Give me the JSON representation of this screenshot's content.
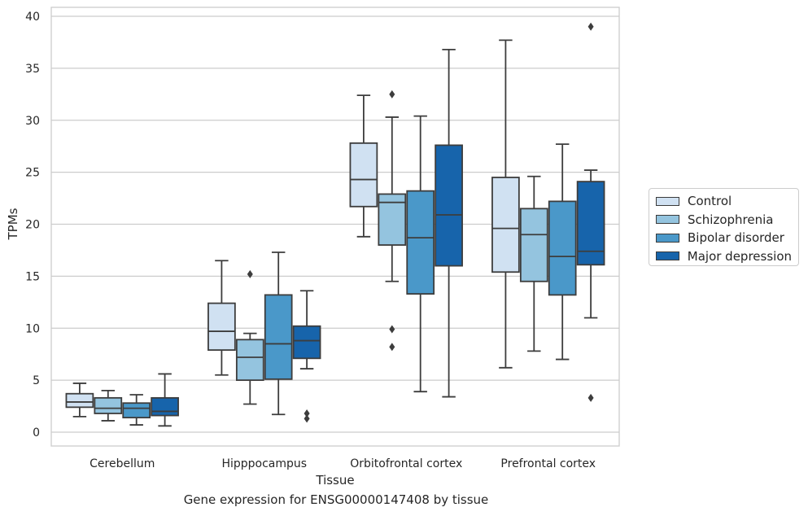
{
  "caption": "Gene expression for ENSG00000147408 by tissue",
  "chart_data": {
    "type": "box",
    "xlabel": "Tissue",
    "ylabel": "TPMs",
    "ylim": [
      -1.3,
      41
    ],
    "yticks": [
      0,
      5,
      10,
      15,
      20,
      25,
      30,
      35,
      40
    ],
    "grid": true,
    "legend_position": "right",
    "categories": [
      "Cerebellum",
      "Hipppocampus",
      "Orbitofrontal cortex",
      "Prefrontal cortex"
    ],
    "series": [
      {
        "name": "Control",
        "color": "#d0e1f2",
        "boxes": [
          {
            "whisker_low": 1.5,
            "q1": 2.4,
            "median": 2.9,
            "q3": 3.7,
            "whisker_high": 4.7,
            "outliers": []
          },
          {
            "whisker_low": 5.5,
            "q1": 7.9,
            "median": 9.7,
            "q3": 12.4,
            "whisker_high": 16.5,
            "outliers": []
          },
          {
            "whisker_low": 18.8,
            "q1": 21.7,
            "median": 24.3,
            "q3": 27.8,
            "whisker_high": 32.4,
            "outliers": []
          },
          {
            "whisker_low": 6.2,
            "q1": 15.4,
            "median": 19.6,
            "q3": 24.5,
            "whisker_high": 37.7,
            "outliers": []
          }
        ]
      },
      {
        "name": "Schizophrenia",
        "color": "#94c4df",
        "boxes": [
          {
            "whisker_low": 1.1,
            "q1": 1.8,
            "median": 2.3,
            "q3": 3.3,
            "whisker_high": 4.0,
            "outliers": []
          },
          {
            "whisker_low": 2.7,
            "q1": 5.0,
            "median": 7.2,
            "q3": 8.9,
            "whisker_high": 9.5,
            "outliers": [
              15.2
            ]
          },
          {
            "whisker_low": 14.5,
            "q1": 18.0,
            "median": 22.1,
            "q3": 22.9,
            "whisker_high": 30.3,
            "outliers": [
              32.5,
              9.9,
              8.2
            ]
          },
          {
            "whisker_low": 7.8,
            "q1": 14.5,
            "median": 19.0,
            "q3": 21.5,
            "whisker_high": 24.6,
            "outliers": []
          }
        ]
      },
      {
        "name": "Bipolar disorder",
        "color": "#4a98c9",
        "boxes": [
          {
            "whisker_low": 0.7,
            "q1": 1.4,
            "median": 2.3,
            "q3": 2.8,
            "whisker_high": 3.6,
            "outliers": []
          },
          {
            "whisker_low": 1.7,
            "q1": 5.1,
            "median": 8.5,
            "q3": 13.2,
            "whisker_high": 17.3,
            "outliers": []
          },
          {
            "whisker_low": 3.9,
            "q1": 13.3,
            "median": 18.7,
            "q3": 23.2,
            "whisker_high": 30.4,
            "outliers": []
          },
          {
            "whisker_low": 7.0,
            "q1": 13.2,
            "median": 16.9,
            "q3": 22.2,
            "whisker_high": 27.7,
            "outliers": []
          }
        ]
      },
      {
        "name": "Major depression",
        "color": "#1764ab",
        "boxes": [
          {
            "whisker_low": 0.6,
            "q1": 1.6,
            "median": 2.0,
            "q3": 3.3,
            "whisker_high": 5.6,
            "outliers": []
          },
          {
            "whisker_low": 6.1,
            "q1": 7.1,
            "median": 8.8,
            "q3": 10.2,
            "whisker_high": 13.6,
            "outliers": [
              1.8,
              1.3
            ]
          },
          {
            "whisker_low": 3.4,
            "q1": 16.0,
            "median": 20.9,
            "q3": 27.6,
            "whisker_high": 36.8,
            "outliers": []
          },
          {
            "whisker_low": 11.0,
            "q1": 16.1,
            "median": 17.4,
            "q3": 24.1,
            "whisker_high": 25.2,
            "outliers": [
              39.0,
              3.3
            ]
          }
        ]
      }
    ]
  }
}
